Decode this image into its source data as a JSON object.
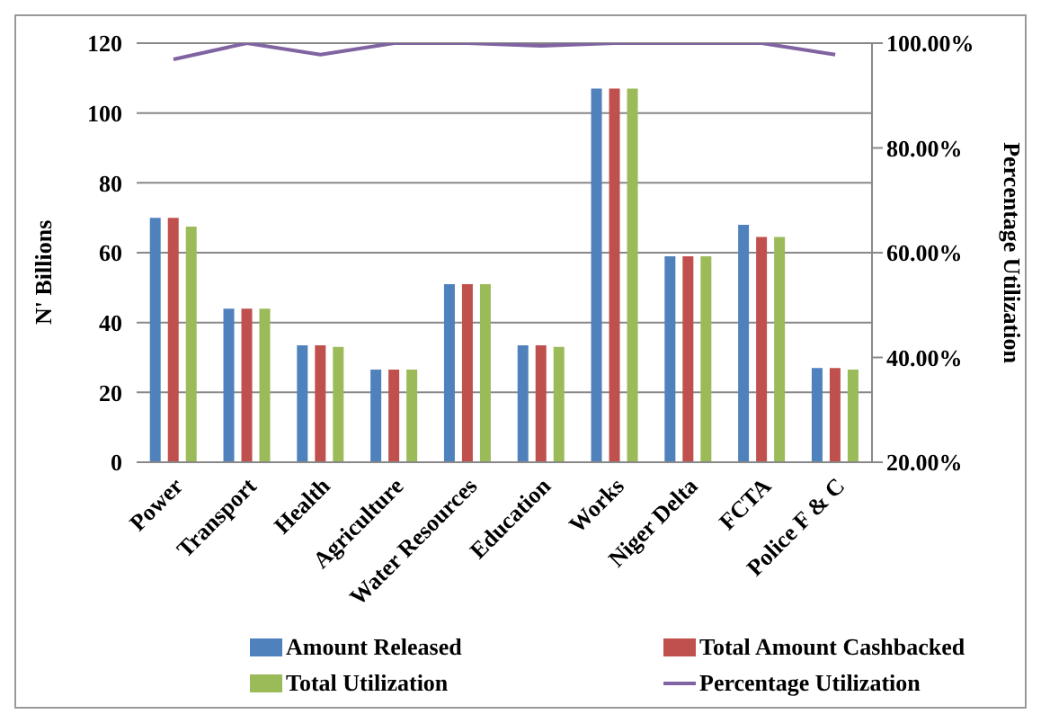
{
  "chart_data": {
    "type": "bar",
    "ylabel": "N' Billions",
    "y2label": "Percentage Utilization",
    "categories": [
      "Power",
      "Transport",
      "Health",
      "Agriculture",
      "Water Resources",
      "Education",
      "Works",
      "Niger Delta",
      "FCTA",
      "Police F & C"
    ],
    "series": [
      {
        "name": "Amount Released",
        "color": "#4f81bd",
        "values": [
          70,
          44,
          33.5,
          26.5,
          51,
          33.5,
          107,
          59,
          68,
          27
        ]
      },
      {
        "name": "Total Amount Cashbacked",
        "color": "#c0504d",
        "values": [
          70,
          44,
          33.5,
          26.5,
          51,
          33.5,
          107,
          59,
          64.5,
          27
        ]
      },
      {
        "name": "Total Utilization",
        "color": "#9bbb59",
        "values": [
          67.5,
          44,
          33,
          26.5,
          51,
          33,
          107,
          59,
          64.5,
          26.5
        ]
      },
      {
        "name": "Percentage Utilization",
        "type": "line",
        "axis": "y2",
        "color": "#8064a2",
        "values": [
          96.9,
          100,
          97.8,
          100,
          100,
          99.5,
          100,
          100,
          100,
          97.8
        ]
      }
    ],
    "ylim": [
      0,
      120
    ],
    "yticks": [
      0,
      20,
      40,
      60,
      80,
      100,
      120
    ],
    "y2lim": [
      20,
      100
    ],
    "y2ticks": [
      {
        "value": 20,
        "label": "20.00%"
      },
      {
        "value": 40,
        "label": "40.00%"
      },
      {
        "value": 60,
        "label": "60.00%"
      },
      {
        "value": 80,
        "label": "80.00%"
      },
      {
        "value": 100,
        "label": "100.00%"
      }
    ],
    "grid": "y",
    "legend": "bottom",
    "marker": "none"
  }
}
